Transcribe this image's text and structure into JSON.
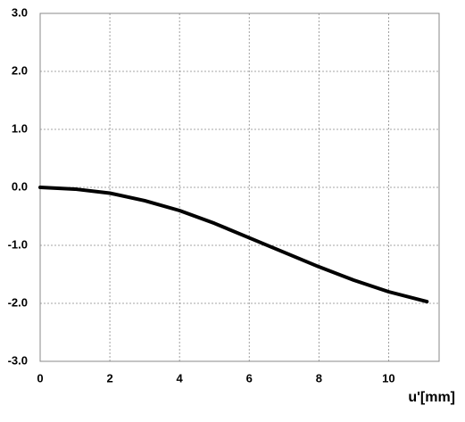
{
  "chart_data": {
    "type": "line",
    "x_label": "u'[mm]",
    "x": [
      0,
      1,
      2,
      3,
      4,
      5,
      6,
      7,
      8,
      9,
      10,
      11.1
    ],
    "series": [
      {
        "color": "#000000",
        "values": [
          0,
          -0.03,
          -0.1,
          -0.23,
          -0.4,
          -0.62,
          -0.87,
          -1.12,
          -1.37,
          -1.6,
          -1.8,
          -1.97
        ]
      }
    ],
    "xlim": [
      0,
      11.45
    ],
    "xticks": [
      0,
      2,
      4,
      6,
      8,
      10
    ],
    "ylim": [
      -3,
      3
    ],
    "yticks": [
      {
        "value": -3,
        "label": "-3.0"
      },
      {
        "value": -2,
        "label": "-2.0"
      },
      {
        "value": -1,
        "label": "-1.0"
      },
      {
        "value": 0,
        "label": "0.0"
      },
      {
        "value": 1,
        "label": "1.0"
      },
      {
        "value": 2,
        "label": "2.0"
      },
      {
        "value": 3,
        "label": "3.0"
      }
    ],
    "grid": true
  }
}
